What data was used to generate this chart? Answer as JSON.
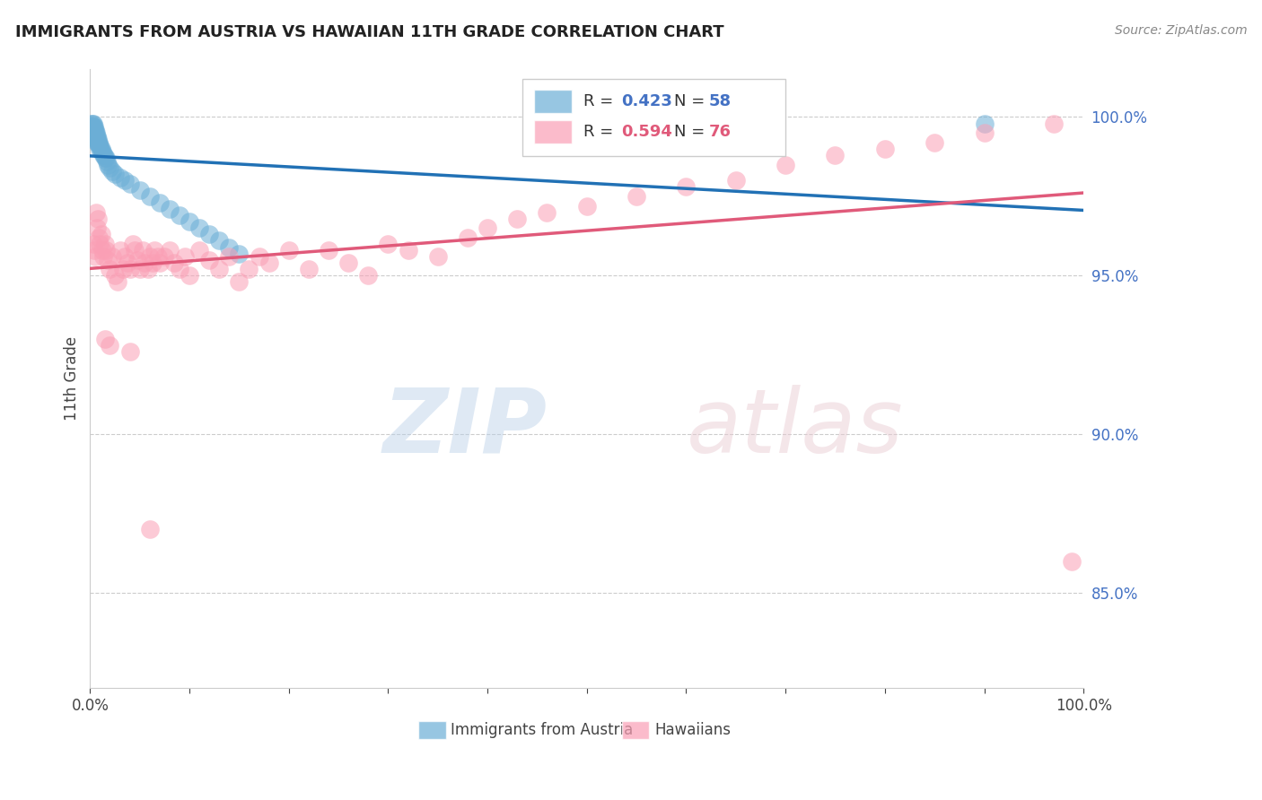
{
  "title": "IMMIGRANTS FROM AUSTRIA VS HAWAIIAN 11TH GRADE CORRELATION CHART",
  "source": "Source: ZipAtlas.com",
  "ylabel": "11th Grade",
  "ytick_labels": [
    "100.0%",
    "95.0%",
    "90.0%",
    "85.0%"
  ],
  "ytick_values": [
    1.0,
    0.95,
    0.9,
    0.85
  ],
  "xmin": 0.0,
  "xmax": 1.0,
  "ymin": 0.82,
  "ymax": 1.015,
  "blue_color": "#6baed6",
  "blue_line_color": "#2171b5",
  "pink_color": "#fa9fb5",
  "pink_line_color": "#e05a7a",
  "background_color": "#ffffff",
  "grid_color": "#cccccc",
  "blue_x": [
    0.001,
    0.001,
    0.001,
    0.002,
    0.002,
    0.002,
    0.002,
    0.003,
    0.003,
    0.003,
    0.003,
    0.003,
    0.004,
    0.004,
    0.004,
    0.004,
    0.005,
    0.005,
    0.005,
    0.006,
    0.006,
    0.006,
    0.007,
    0.007,
    0.007,
    0.008,
    0.008,
    0.009,
    0.009,
    0.01,
    0.01,
    0.011,
    0.011,
    0.012,
    0.013,
    0.014,
    0.015,
    0.016,
    0.017,
    0.018,
    0.02,
    0.022,
    0.025,
    0.03,
    0.035,
    0.04,
    0.05,
    0.06,
    0.07,
    0.08,
    0.09,
    0.1,
    0.11,
    0.12,
    0.13,
    0.14,
    0.15,
    0.9
  ],
  "blue_y": [
    0.998,
    0.997,
    0.996,
    0.998,
    0.997,
    0.996,
    0.995,
    0.998,
    0.997,
    0.996,
    0.995,
    0.994,
    0.997,
    0.996,
    0.995,
    0.994,
    0.996,
    0.995,
    0.994,
    0.995,
    0.994,
    0.993,
    0.994,
    0.993,
    0.992,
    0.993,
    0.992,
    0.992,
    0.991,
    0.991,
    0.99,
    0.99,
    0.989,
    0.989,
    0.988,
    0.988,
    0.987,
    0.987,
    0.986,
    0.985,
    0.984,
    0.983,
    0.982,
    0.981,
    0.98,
    0.979,
    0.977,
    0.975,
    0.973,
    0.971,
    0.969,
    0.967,
    0.965,
    0.963,
    0.961,
    0.959,
    0.957,
    0.998
  ],
  "pink_x": [
    0.003,
    0.004,
    0.005,
    0.006,
    0.007,
    0.008,
    0.009,
    0.01,
    0.011,
    0.012,
    0.013,
    0.015,
    0.016,
    0.018,
    0.02,
    0.022,
    0.025,
    0.028,
    0.03,
    0.033,
    0.035,
    0.038,
    0.04,
    0.043,
    0.045,
    0.048,
    0.05,
    0.053,
    0.055,
    0.058,
    0.06,
    0.063,
    0.065,
    0.068,
    0.07,
    0.075,
    0.08,
    0.085,
    0.09,
    0.095,
    0.1,
    0.11,
    0.12,
    0.13,
    0.14,
    0.15,
    0.16,
    0.17,
    0.18,
    0.2,
    0.22,
    0.24,
    0.26,
    0.28,
    0.3,
    0.32,
    0.35,
    0.38,
    0.4,
    0.43,
    0.46,
    0.5,
    0.55,
    0.6,
    0.65,
    0.7,
    0.75,
    0.8,
    0.85,
    0.9,
    0.015,
    0.02,
    0.04,
    0.97,
    0.988,
    0.06
  ],
  "pink_y": [
    0.96,
    0.958,
    0.956,
    0.97,
    0.965,
    0.968,
    0.962,
    0.96,
    0.963,
    0.958,
    0.956,
    0.96,
    0.958,
    0.955,
    0.952,
    0.956,
    0.95,
    0.948,
    0.958,
    0.952,
    0.956,
    0.954,
    0.952,
    0.96,
    0.958,
    0.955,
    0.952,
    0.958,
    0.954,
    0.952,
    0.956,
    0.954,
    0.958,
    0.956,
    0.954,
    0.956,
    0.958,
    0.954,
    0.952,
    0.956,
    0.95,
    0.958,
    0.955,
    0.952,
    0.956,
    0.948,
    0.952,
    0.956,
    0.954,
    0.958,
    0.952,
    0.958,
    0.954,
    0.95,
    0.96,
    0.958,
    0.956,
    0.962,
    0.965,
    0.968,
    0.97,
    0.972,
    0.975,
    0.978,
    0.98,
    0.985,
    0.988,
    0.99,
    0.992,
    0.995,
    0.93,
    0.928,
    0.926,
    0.998,
    0.86,
    0.87
  ]
}
